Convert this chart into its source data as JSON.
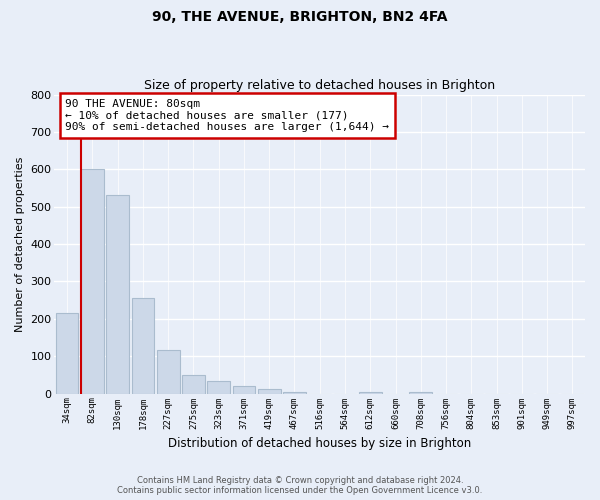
{
  "title": "90, THE AVENUE, BRIGHTON, BN2 4FA",
  "subtitle": "Size of property relative to detached houses in Brighton",
  "xlabel": "Distribution of detached houses by size in Brighton",
  "ylabel": "Number of detached properties",
  "bar_labels": [
    "34sqm",
    "82sqm",
    "130sqm",
    "178sqm",
    "227sqm",
    "275sqm",
    "323sqm",
    "371sqm",
    "419sqm",
    "467sqm",
    "516sqm",
    "564sqm",
    "612sqm",
    "660sqm",
    "708sqm",
    "756sqm",
    "804sqm",
    "853sqm",
    "901sqm",
    "949sqm",
    "997sqm"
  ],
  "bar_heights": [
    215,
    600,
    530,
    255,
    118,
    50,
    33,
    20,
    13,
    5,
    0,
    0,
    5,
    0,
    5,
    0,
    0,
    0,
    0,
    0,
    0
  ],
  "bar_color": "#ccd8e8",
  "bar_edge_color": "#aabcce",
  "marker_color": "#cc0000",
  "annotation_text": "90 THE AVENUE: 80sqm\n← 10% of detached houses are smaller (177)\n90% of semi-detached houses are larger (1,644) →",
  "annotation_box_color": "white",
  "annotation_box_edge": "#cc0000",
  "ylim": [
    0,
    800
  ],
  "yticks": [
    0,
    100,
    200,
    300,
    400,
    500,
    600,
    700,
    800
  ],
  "background_color": "#e8eef8",
  "grid_color": "#d0d8e8",
  "footer_line1": "Contains HM Land Registry data © Crown copyright and database right 2024.",
  "footer_line2": "Contains public sector information licensed under the Open Government Licence v3.0."
}
